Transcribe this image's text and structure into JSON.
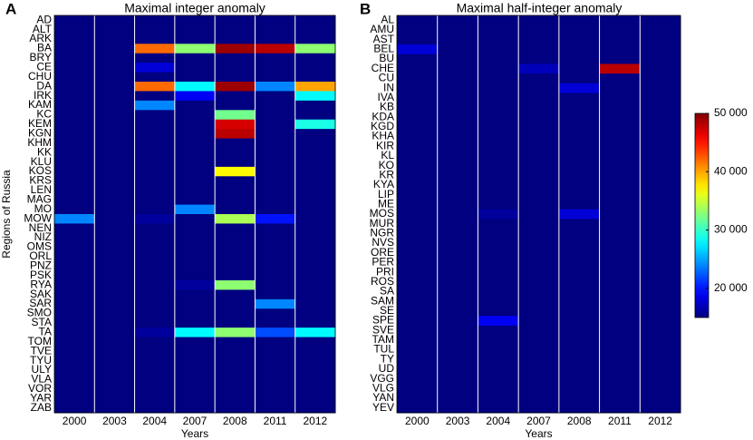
{
  "chart_data": [
    {
      "type": "heatmap",
      "panel": "A",
      "title": "Maximal integer anomaly",
      "xlabel": "Years",
      "ylabel": "Regions of Russia",
      "categories": [
        "2000",
        "2003",
        "2004",
        "2007",
        "2008",
        "2011",
        "2012"
      ],
      "rows": [
        "AD",
        "ALT",
        "ARK",
        "BA",
        "BRY",
        "CE",
        "CHU",
        "DA",
        "IRK",
        "KAM",
        "KC",
        "KEM",
        "KGN",
        "KHM",
        "KK",
        "KLU",
        "KOS",
        "KRS",
        "LEN",
        "MAG",
        "MO",
        "MOW",
        "NEN",
        "NIZ",
        "OMS",
        "ORL",
        "PNZ",
        "PSK",
        "RYA",
        "SAK",
        "SAR",
        "SMO",
        "STA",
        "TA",
        "TOM",
        "TVE",
        "TYU",
        "ULY",
        "VLA",
        "VOR",
        "YAR",
        "ZAB"
      ],
      "values": [
        [
          15000,
          15000,
          15000,
          15000,
          15000,
          15000,
          15000
        ],
        [
          15000,
          15000,
          15000,
          15000,
          15000,
          15000,
          15000
        ],
        [
          15000,
          15000,
          15000,
          15000,
          15000,
          15000,
          15000
        ],
        [
          15000,
          15000,
          42000,
          33000,
          49000,
          48000,
          33000
        ],
        [
          15000,
          15000,
          15000,
          15000,
          15000,
          15000,
          15000
        ],
        [
          15000,
          15000,
          18000,
          15000,
          15000,
          15000,
          15000
        ],
        [
          15000,
          15000,
          15000,
          15000,
          15000,
          15000,
          15000
        ],
        [
          15000,
          15000,
          42000,
          28000,
          49000,
          24000,
          40000
        ],
        [
          15000,
          15000,
          15000,
          19000,
          15000,
          15000,
          28000
        ],
        [
          15000,
          15000,
          24000,
          15000,
          15000,
          15000,
          15000
        ],
        [
          15000,
          15000,
          15000,
          15000,
          32000,
          15000,
          15000
        ],
        [
          15000,
          15000,
          15000,
          15000,
          47000,
          15000,
          29000
        ],
        [
          15000,
          15000,
          15000,
          15000,
          48000,
          15000,
          15000
        ],
        [
          15000,
          15000,
          15000,
          15000,
          15000,
          15000,
          15000
        ],
        [
          15000,
          15000,
          15000,
          15000,
          15000,
          15000,
          15000
        ],
        [
          15000,
          15000,
          15000,
          15000,
          15000,
          15000,
          15000
        ],
        [
          15000,
          15000,
          15000,
          15000,
          37000,
          15000,
          15000
        ],
        [
          15000,
          15000,
          15000,
          15000,
          15000,
          15000,
          15000
        ],
        [
          15000,
          15000,
          15000,
          15000,
          15000,
          15000,
          15000
        ],
        [
          15000,
          15000,
          15000,
          15000,
          15000,
          15000,
          15000
        ],
        [
          15000,
          15000,
          15000,
          24000,
          15000,
          15000,
          15000
        ],
        [
          24000,
          15000,
          16000,
          15000,
          34000,
          20000,
          15000
        ],
        [
          15000,
          15000,
          15000,
          15000,
          15000,
          15000,
          15000
        ],
        [
          15000,
          15000,
          15000,
          15000,
          15000,
          15000,
          15000
        ],
        [
          15000,
          15000,
          15000,
          15000,
          15000,
          15000,
          15000
        ],
        [
          15000,
          15000,
          15000,
          15000,
          15000,
          15000,
          15000
        ],
        [
          15000,
          15000,
          15000,
          15000,
          15000,
          15000,
          15000
        ],
        [
          15000,
          15000,
          15000,
          15000,
          15000,
          15000,
          15000
        ],
        [
          15000,
          15000,
          15000,
          16000,
          33000,
          15000,
          15000
        ],
        [
          15000,
          15000,
          15000,
          15000,
          15000,
          15000,
          15000
        ],
        [
          15000,
          15000,
          15000,
          15000,
          15000,
          24000,
          15000
        ],
        [
          15000,
          15000,
          15000,
          15000,
          15000,
          15000,
          15000
        ],
        [
          15000,
          15000,
          15000,
          15000,
          15000,
          15000,
          15000
        ],
        [
          15000,
          15000,
          16000,
          28000,
          33000,
          22000,
          28000
        ],
        [
          15000,
          15000,
          15000,
          15000,
          15000,
          15000,
          15000
        ],
        [
          15000,
          15000,
          15000,
          15000,
          15000,
          15000,
          15000
        ],
        [
          15000,
          15000,
          15000,
          15000,
          15000,
          15000,
          15000
        ],
        [
          15000,
          15000,
          15000,
          15000,
          15000,
          15000,
          15000
        ],
        [
          15000,
          15000,
          15000,
          15000,
          15000,
          15000,
          15000
        ],
        [
          15000,
          15000,
          15000,
          15000,
          15000,
          15000,
          15000
        ],
        [
          15000,
          15000,
          15000,
          15000,
          15000,
          15000,
          15000
        ],
        [
          15000,
          15000,
          15000,
          15000,
          15000,
          15000,
          15000
        ]
      ]
    },
    {
      "type": "heatmap",
      "panel": "B",
      "title": "Maximal half-integer anomaly",
      "xlabel": "Years",
      "categories": [
        "2000",
        "2003",
        "2004",
        "2007",
        "2008",
        "2011",
        "2012"
      ],
      "rows": [
        "AL",
        "AMU",
        "AST",
        "BEL",
        "BU",
        "CHE",
        "CU",
        "IN",
        "IVA",
        "KB",
        "KDA",
        "KGD",
        "KHA",
        "KIR",
        "KL",
        "KO",
        "KR",
        "KYA",
        "LIP",
        "ME",
        "MOS",
        "MUR",
        "NGR",
        "NVS",
        "ORE",
        "PER",
        "PRI",
        "ROS",
        "SA",
        "SAM",
        "SE",
        "SPE",
        "SVE",
        "TAM",
        "TUL",
        "TY",
        "UD",
        "VGG",
        "VLG",
        "YAN",
        "YEV"
      ],
      "values": [
        [
          15000,
          15000,
          15000,
          15000,
          15000,
          15000,
          15000
        ],
        [
          15000,
          15000,
          15000,
          15000,
          15000,
          15000,
          15000
        ],
        [
          15000,
          15000,
          15000,
          15000,
          15000,
          15000,
          15000
        ],
        [
          18000,
          15000,
          15000,
          15000,
          15000,
          15000,
          15000
        ],
        [
          15000,
          15000,
          15000,
          15000,
          15000,
          15000,
          15000
        ],
        [
          15000,
          15000,
          15000,
          17000,
          15000,
          48000,
          15000
        ],
        [
          15000,
          15000,
          15000,
          15000,
          15000,
          15000,
          15000
        ],
        [
          15000,
          15000,
          15000,
          15000,
          18000,
          15000,
          15000
        ],
        [
          15000,
          15000,
          15000,
          15000,
          15000,
          15000,
          15000
        ],
        [
          15000,
          15000,
          15000,
          15000,
          15000,
          15000,
          15000
        ],
        [
          15000,
          15000,
          15000,
          15000,
          15000,
          15000,
          15000
        ],
        [
          15000,
          15000,
          15000,
          15000,
          15000,
          15000,
          15000
        ],
        [
          15000,
          15000,
          15000,
          15000,
          15000,
          15000,
          15000
        ],
        [
          15000,
          15000,
          15000,
          15000,
          15000,
          15000,
          15000
        ],
        [
          15000,
          15000,
          15000,
          15000,
          15000,
          15000,
          15000
        ],
        [
          15000,
          15000,
          15000,
          15000,
          15000,
          15000,
          15000
        ],
        [
          15000,
          15000,
          15000,
          15000,
          15000,
          15000,
          15000
        ],
        [
          15000,
          15000,
          15000,
          15000,
          15000,
          15000,
          15000
        ],
        [
          15000,
          15000,
          15000,
          15000,
          15000,
          15000,
          15000
        ],
        [
          15000,
          15000,
          15000,
          15000,
          15000,
          15000,
          15000
        ],
        [
          15000,
          15000,
          16000,
          15000,
          18000,
          15000,
          15000
        ],
        [
          15000,
          15000,
          15000,
          15000,
          15000,
          15000,
          15000
        ],
        [
          15000,
          15000,
          15000,
          15000,
          15000,
          15000,
          15000
        ],
        [
          15000,
          15000,
          15000,
          15000,
          15000,
          15000,
          15000
        ],
        [
          15000,
          15000,
          15000,
          15000,
          15000,
          15000,
          15000
        ],
        [
          15000,
          15000,
          15000,
          15000,
          15000,
          15000,
          15000
        ],
        [
          15000,
          15000,
          15000,
          15000,
          15000,
          15000,
          15000
        ],
        [
          15000,
          15000,
          15000,
          15000,
          15000,
          15000,
          15000
        ],
        [
          15000,
          15000,
          15000,
          15000,
          15000,
          15000,
          15000
        ],
        [
          15000,
          15000,
          15000,
          15000,
          15000,
          15000,
          15000
        ],
        [
          15000,
          15000,
          15000,
          15000,
          15000,
          15000,
          15000
        ],
        [
          15000,
          15000,
          19000,
          15000,
          15000,
          15000,
          15000
        ],
        [
          15000,
          15000,
          15000,
          15000,
          15000,
          15000,
          15000
        ],
        [
          15000,
          15000,
          15000,
          15000,
          15000,
          15000,
          15000
        ],
        [
          15000,
          15000,
          15000,
          15000,
          15000,
          15000,
          15000
        ],
        [
          15000,
          15000,
          15000,
          15000,
          15000,
          15000,
          15000
        ],
        [
          15000,
          15000,
          15000,
          15000,
          15000,
          15000,
          15000
        ],
        [
          15000,
          15000,
          15000,
          15000,
          15000,
          15000,
          15000
        ],
        [
          15000,
          15000,
          15000,
          15000,
          15000,
          15000,
          15000
        ],
        [
          15000,
          15000,
          15000,
          15000,
          15000,
          15000,
          15000
        ],
        [
          15000,
          15000,
          15000,
          15000,
          15000,
          15000,
          15000
        ]
      ]
    }
  ],
  "colorbar": {
    "colormap": "jet",
    "lim": [
      15000,
      50000
    ],
    "ticks": [
      {
        "value": 20000,
        "label": "20 000"
      },
      {
        "value": 30000,
        "label": "30 000"
      },
      {
        "value": 40000,
        "label": "40 000"
      },
      {
        "value": 50000,
        "label": "50 000"
      }
    ]
  }
}
